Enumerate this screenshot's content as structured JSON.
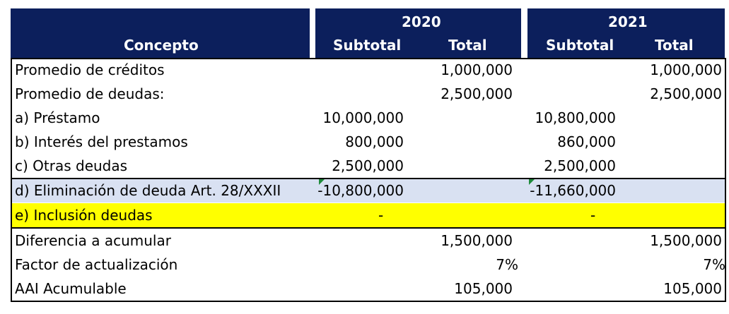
{
  "header": {
    "concepto": "Concepto",
    "year_2020": "2020",
    "year_2021": "2021",
    "subtotal_2020": "Subtotal",
    "total_2020": "Total",
    "subtotal_2021": "Subtotal",
    "total_2021": "Total"
  },
  "rows": [
    {
      "label": "Promedio de créditos",
      "sub2020": "",
      "tot2020": "1,000,000",
      "sub2021": "",
      "tot2021": "1,000,000"
    },
    {
      "label": "Promedio de deudas:",
      "sub2020": "",
      "tot2020": "2,500,000",
      "sub2021": "",
      "tot2021": "2,500,000"
    },
    {
      "label": "a) Préstamo",
      "sub2020": "10,000,000",
      "tot2020": "",
      "sub2021": "10,800,000",
      "tot2021": ""
    },
    {
      "label": "b) Interés del prestamos",
      "sub2020": "800,000",
      "tot2020": "",
      "sub2021": "860,000",
      "tot2021": ""
    },
    {
      "label": "c) Otras deudas",
      "sub2020": "2,500,000",
      "tot2020": "",
      "sub2021": "2,500,000",
      "tot2021": ""
    },
    {
      "label": "d) Eliminación de deuda Art. 28/XXXII",
      "sub2020": "-10,800,000",
      "tot2020": "",
      "sub2021": "-11,660,000",
      "tot2021": ""
    },
    {
      "label": "e) Inclusión deudas",
      "sub2020": "-",
      "tot2020": "",
      "sub2021": "-",
      "tot2021": ""
    },
    {
      "label": "Diferencia a acumular",
      "sub2020": "",
      "tot2020": "1,500,000",
      "sub2021": "",
      "tot2021": "1,500,000"
    },
    {
      "label": "Factor de actualización",
      "sub2020": "",
      "tot2020": "7%",
      "sub2021": "",
      "tot2021": "7%"
    },
    {
      "label": "AAI Acumulable",
      "sub2020": "",
      "tot2020": "105,000",
      "sub2021": "",
      "tot2021": "105,000"
    }
  ],
  "colors": {
    "header_bg": "#0c1f5c",
    "row_d_bg": "#d9e1f2",
    "row_e_bg": "#ffff00",
    "comment_flag": "#1f8a3b"
  }
}
